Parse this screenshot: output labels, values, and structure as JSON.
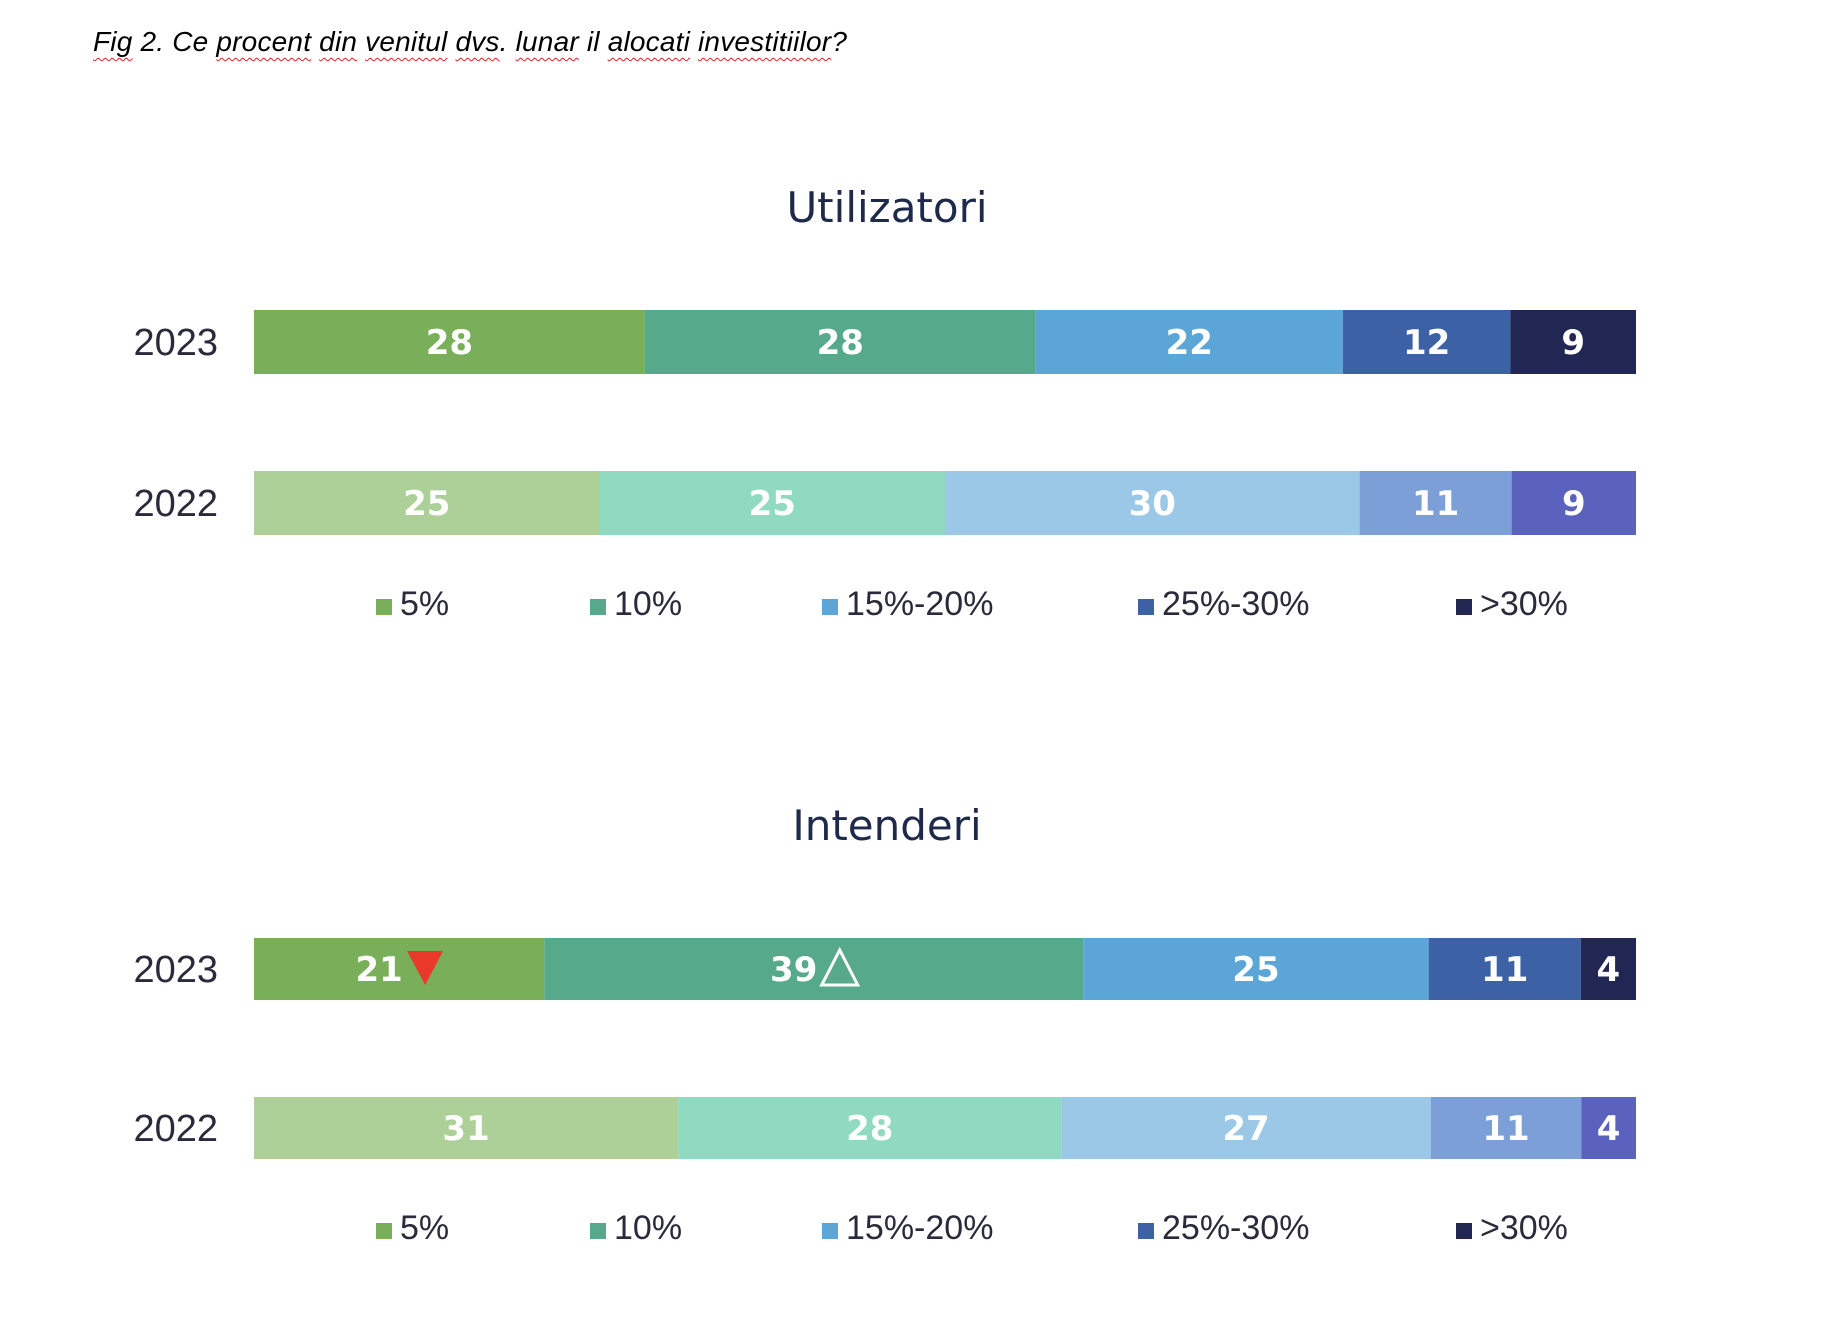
{
  "caption": {
    "parts": [
      {
        "text": "Fig",
        "squiggle": true
      },
      {
        "text": " 2. Ce ",
        "squiggle": false
      },
      {
        "text": "procent",
        "squiggle": true
      },
      {
        "text": " ",
        "squiggle": false
      },
      {
        "text": "din",
        "squiggle": true
      },
      {
        "text": " ",
        "squiggle": false
      },
      {
        "text": "venitul",
        "squiggle": true
      },
      {
        "text": " ",
        "squiggle": false
      },
      {
        "text": "dvs",
        "squiggle": true
      },
      {
        "text": ". ",
        "squiggle": false
      },
      {
        "text": "lunar",
        "squiggle": true
      },
      {
        "text": " il ",
        "squiggle": false
      },
      {
        "text": "alocati",
        "squiggle": true
      },
      {
        "text": " ",
        "squiggle": false
      },
      {
        "text": "investitiilor",
        "squiggle": true
      },
      {
        "text": "?",
        "squiggle": false
      }
    ]
  },
  "chart_data": [
    {
      "type": "bar",
      "orientation": "horizontal-stacked",
      "title": "Utilizatori",
      "categories": [
        "2023",
        "2022"
      ],
      "series": [
        {
          "name": "5%",
          "values": [
            28,
            25
          ],
          "colors": [
            "#7aaf5a",
            "#acd097"
          ]
        },
        {
          "name": "10%",
          "values": [
            28,
            25
          ],
          "colors": [
            "#57a98b",
            "#8fdac0"
          ]
        },
        {
          "name": "15%-20%",
          "values": [
            22,
            30
          ],
          "colors": [
            "#5ba6d7",
            "#9ac8e6"
          ]
        },
        {
          "name": "25%-30%",
          "values": [
            12,
            11
          ],
          "colors": [
            "#3c62a5",
            "#7c9fd8"
          ]
        },
        {
          "name": ">30%",
          "values": [
            9,
            9
          ],
          "colors": [
            "#222653",
            "#5a62bd"
          ]
        }
      ],
      "markers": [],
      "legend_position": "bottom",
      "grid": false
    },
    {
      "type": "bar",
      "orientation": "horizontal-stacked",
      "title": "Intenderi",
      "categories": [
        "2023",
        "2022"
      ],
      "series": [
        {
          "name": "5%",
          "values": [
            21,
            31
          ],
          "colors": [
            "#7aaf5a",
            "#acd097"
          ]
        },
        {
          "name": "10%",
          "values": [
            39,
            28
          ],
          "colors": [
            "#57a98b",
            "#8fdac0"
          ]
        },
        {
          "name": "15%-20%",
          "values": [
            25,
            27
          ],
          "colors": [
            "#5ba6d7",
            "#9ac8e6"
          ]
        },
        {
          "name": "25%-30%",
          "values": [
            11,
            11
          ],
          "colors": [
            "#3c62a5",
            "#7c9fd8"
          ]
        },
        {
          "name": ">30%",
          "values": [
            4,
            4
          ],
          "colors": [
            "#222653",
            "#5a62bd"
          ]
        }
      ],
      "markers": [
        {
          "category": "2023",
          "series": "5%",
          "shape": "triangle-down-filled",
          "color": "#e8392a"
        },
        {
          "category": "2023",
          "series": "10%",
          "shape": "triangle-up-outline",
          "color": "#ffffff"
        }
      ],
      "legend_position": "bottom",
      "grid": false
    }
  ]
}
